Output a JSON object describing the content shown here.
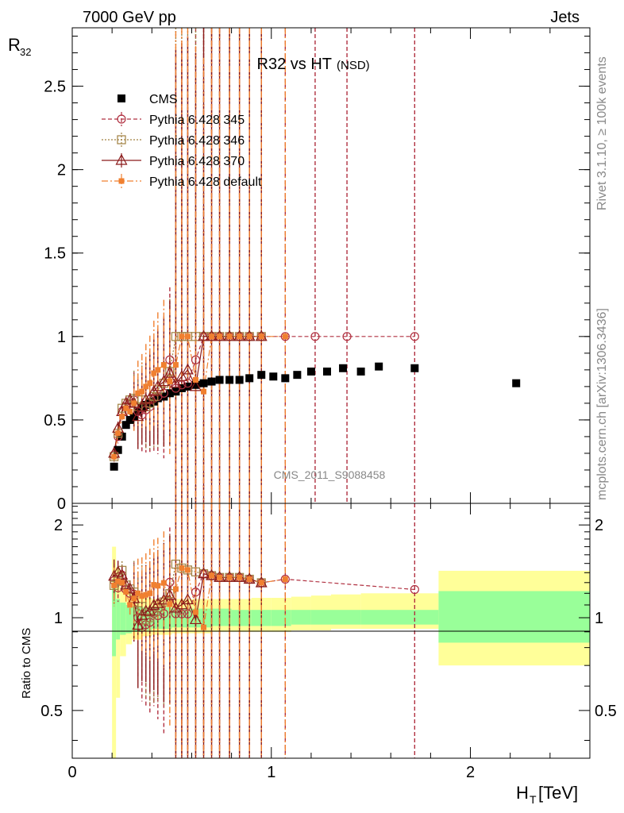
{
  "header": {
    "left": "7000 GeV pp",
    "right": "Jets"
  },
  "side_labels": {
    "rivet": "Rivet 3.1.10, ≥ 100k events",
    "mcplots": "mcplots.cern.ch [arXiv:1306.3436]"
  },
  "chart_data": [
    {
      "type": "scatter",
      "title": "R32 vs HT",
      "title_suffix": "(NSD)",
      "watermark": "CMS_2011_S9088458",
      "ylabel": "R",
      "ylabel_sub": "32",
      "xlim": [
        0,
        2.6
      ],
      "ylim": [
        0,
        2.85
      ],
      "yticks": [
        0,
        0.5,
        1,
        1.5,
        2,
        2.5
      ],
      "yticklabels": [
        "0",
        "0.5",
        "1",
        "1.5",
        "2",
        "2.5"
      ],
      "legend_position": "top-left",
      "series": [
        {
          "name": "CMS",
          "color": "#000000",
          "marker": "filled-square",
          "x": [
            0.21,
            0.23,
            0.25,
            0.27,
            0.29,
            0.31,
            0.33,
            0.35,
            0.37,
            0.39,
            0.41,
            0.43,
            0.46,
            0.49,
            0.52,
            0.55,
            0.58,
            0.62,
            0.66,
            0.7,
            0.74,
            0.79,
            0.84,
            0.89,
            0.95,
            1.01,
            1.07,
            1.13,
            1.2,
            1.28,
            1.36,
            1.45,
            1.54,
            1.72,
            2.23
          ],
          "y": [
            0.22,
            0.32,
            0.4,
            0.47,
            0.5,
            0.52,
            0.55,
            0.57,
            0.59,
            0.6,
            0.61,
            0.63,
            0.64,
            0.66,
            0.67,
            0.69,
            0.7,
            0.71,
            0.72,
            0.73,
            0.74,
            0.74,
            0.74,
            0.75,
            0.77,
            0.76,
            0.75,
            0.77,
            0.79,
            0.79,
            0.81,
            0.79,
            0.82,
            0.81,
            0.72
          ]
        },
        {
          "name": "Pythia 6.428 345",
          "color": "#b03040",
          "marker": "open-circle",
          "x": [
            0.21,
            0.23,
            0.25,
            0.27,
            0.29,
            0.31,
            0.33,
            0.35,
            0.37,
            0.39,
            0.41,
            0.43,
            0.46,
            0.49,
            0.52,
            0.55,
            0.58,
            0.62,
            0.66,
            0.7,
            0.74,
            0.79,
            0.84,
            0.89,
            0.95,
            1.07,
            1.22,
            1.38,
            1.72
          ],
          "y": [
            0.29,
            0.4,
            0.55,
            0.58,
            0.6,
            0.62,
            0.55,
            0.53,
            0.56,
            0.58,
            0.63,
            0.64,
            0.66,
            0.86,
            0.69,
            0.71,
            0.72,
            0.86,
            1.0,
            1.0,
            1.0,
            1.0,
            1.0,
            1.0,
            1.0,
            1.0,
            1.0,
            1.0,
            1.0
          ]
        },
        {
          "name": "Pythia 6.428 346",
          "color": "#a08040",
          "marker": "open-square",
          "x": [
            0.21,
            0.23,
            0.25,
            0.27,
            0.29,
            0.31,
            0.33,
            0.35,
            0.37,
            0.39,
            0.41,
            0.43,
            0.46,
            0.49,
            0.52,
            0.55,
            0.58,
            0.62,
            0.66,
            0.7,
            0.74,
            0.79,
            0.84,
            0.89,
            0.95
          ],
          "y": [
            0.28,
            0.42,
            0.57,
            0.6,
            0.62,
            0.63,
            0.58,
            0.62,
            0.58,
            0.6,
            0.64,
            0.68,
            0.72,
            0.79,
            1.0,
            1.0,
            1.0,
            1.0,
            1.0,
            1.0,
            1.0,
            1.0,
            1.0,
            1.0,
            1.0
          ]
        },
        {
          "name": "Pythia 6.428 370",
          "color": "#8b1a1a",
          "marker": "open-triangle",
          "x": [
            0.21,
            0.23,
            0.25,
            0.27,
            0.29,
            0.31,
            0.33,
            0.35,
            0.37,
            0.39,
            0.41,
            0.43,
            0.46,
            0.49,
            0.52,
            0.55,
            0.58,
            0.62,
            0.66,
            0.7,
            0.74,
            0.79,
            0.84,
            0.89,
            0.95
          ],
          "y": [
            0.3,
            0.45,
            0.55,
            0.6,
            0.62,
            0.6,
            0.52,
            0.58,
            0.62,
            0.63,
            0.67,
            0.7,
            0.73,
            0.78,
            0.72,
            0.76,
            0.8,
            0.7,
            1.0,
            1.0,
            1.0,
            1.0,
            1.0,
            1.0,
            1.0
          ]
        },
        {
          "name": "Pythia 6.428 default",
          "color": "#f08030",
          "marker": "filled-square-small",
          "x": [
            0.21,
            0.23,
            0.25,
            0.27,
            0.29,
            0.31,
            0.33,
            0.35,
            0.37,
            0.39,
            0.41,
            0.43,
            0.46,
            0.49,
            0.52,
            0.55,
            0.58,
            0.62,
            0.66,
            0.7,
            0.74,
            0.79,
            0.84,
            0.89,
            0.95,
            1.07
          ],
          "y": [
            0.28,
            0.42,
            0.52,
            0.57,
            0.55,
            0.6,
            0.66,
            0.67,
            0.7,
            0.72,
            0.78,
            0.8,
            0.83,
            0.73,
            0.83,
            1.0,
            1.0,
            0.74,
            0.67,
            1.0,
            1.0,
            1.0,
            1.0,
            1.0,
            1.0,
            1.0
          ]
        }
      ]
    },
    {
      "type": "scatter",
      "xlabel": "H",
      "xlabel_sub": "T",
      "xlabel_unit": "[TeV]",
      "ylabel": "Ratio to CMS",
      "xlim": [
        0,
        2.6
      ],
      "ylim": [
        0.35,
        2.35
      ],
      "xticks": [
        0,
        1,
        2
      ],
      "xticklabels": [
        "0",
        "1",
        "2"
      ],
      "yticks": [
        0.5,
        1,
        2
      ],
      "yticklabels": [
        "0.5",
        "1",
        "2"
      ],
      "reference_line": 1,
      "uncertainty_bands": {
        "x_edges": [
          0.2,
          0.22,
          0.24,
          0.27,
          0.3,
          0.35,
          0.4,
          0.5,
          0.6,
          0.7,
          0.8,
          0.9,
          1.0,
          1.1,
          1.2,
          1.3,
          1.45,
          1.84,
          2.6
        ],
        "stat_lo": [
          0.75,
          0.85,
          0.88,
          0.89,
          0.9,
          0.91,
          0.92,
          0.93,
          0.93,
          0.94,
          0.94,
          0.94,
          0.94,
          0.95,
          0.95,
          0.95,
          0.95,
          0.83,
          0.83
        ],
        "stat_hi": [
          1.25,
          1.15,
          1.12,
          1.1,
          1.09,
          1.08,
          1.08,
          1.07,
          1.07,
          1.07,
          1.06,
          1.06,
          1.06,
          1.06,
          1.06,
          1.06,
          1.06,
          1.22,
          1.22
        ],
        "syst_lo": [
          0.3,
          0.55,
          0.75,
          0.82,
          0.85,
          0.87,
          0.88,
          0.89,
          0.89,
          0.9,
          0.9,
          0.9,
          0.9,
          0.91,
          0.91,
          0.92,
          0.92,
          0.7,
          0.7
        ],
        "syst_hi": [
          1.7,
          1.45,
          1.25,
          1.2,
          1.18,
          1.16,
          1.15,
          1.15,
          1.15,
          1.15,
          1.15,
          1.16,
          1.16,
          1.17,
          1.18,
          1.19,
          1.2,
          1.42,
          1.42
        ],
        "stat_color": "#99ff99",
        "syst_color": "#ffff99"
      }
    }
  ]
}
